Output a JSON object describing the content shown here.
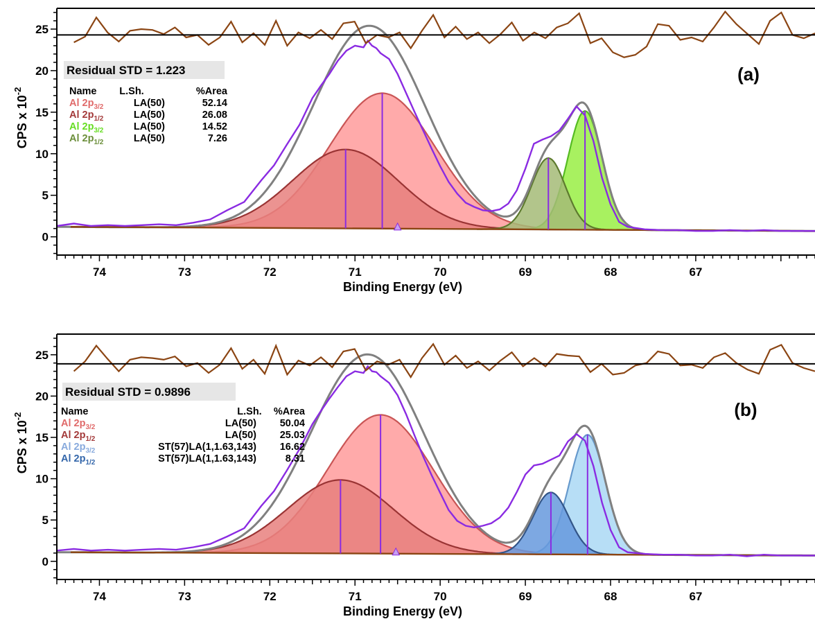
{
  "chart_data": [
    {
      "type": "line",
      "panel_label": "(a)",
      "xlabel": "Binding Energy (eV)",
      "ylabel": "CPS x 10",
      "ylabel_exponent": "-2",
      "xlim": [
        74.5,
        65.6
      ],
      "ylim": [
        -2.2,
        27.5
      ],
      "x_reversed": true,
      "x_ticks": [
        "74",
        "73",
        "72",
        "71",
        "70",
        "69",
        "68",
        "67"
      ],
      "y_ticks": [
        "0",
        "5",
        "10",
        "15",
        "20",
        "25"
      ],
      "residual_std_label": "Residual STD = 1.223",
      "residual_level": 24.3,
      "table": {
        "headers": [
          "Name",
          "L.Sh.",
          "%Area"
        ],
        "rows": [
          {
            "name": "Al 2p",
            "sub": "3/2",
            "lsh": "LA(50)",
            "area": "52.14",
            "color": "#e06a6a"
          },
          {
            "name": "Al 2p",
            "sub": "1/2",
            "lsh": "LA(50)",
            "area": "26.08",
            "color": "#a33a3a"
          },
          {
            "name": "Al 2p",
            "sub": "3/2",
            "lsh": "LA(50)",
            "area": "14.52",
            "color": "#66dd22"
          },
          {
            "name": "Al 2p",
            "sub": "1/2",
            "lsh": "LA(50)",
            "area": "7.26",
            "color": "#6b8e3a"
          }
        ]
      },
      "background": {
        "x": [
          74.5,
          65.6
        ],
        "y": [
          1.2,
          0.7
        ]
      },
      "peaks": [
        {
          "name": "Al 2p3/2",
          "center": 70.68,
          "height": 16.3,
          "sigma": 0.62,
          "fill": "#ff9b9b",
          "stroke": "#c95555"
        },
        {
          "name": "Al 2p1/2",
          "center": 71.11,
          "height": 9.5,
          "sigma": 0.62,
          "fill": "#e8807e",
          "stroke": "#9a3434"
        },
        {
          "name": "Al 2p3/2",
          "center": 68.3,
          "height": 14.3,
          "sigma": 0.2,
          "fill": "#99ee44",
          "stroke": "#55bb22"
        },
        {
          "name": "Al 2p1/2",
          "center": 68.73,
          "height": 8.6,
          "sigma": 0.2,
          "fill": "#a4bb77",
          "stroke": "#5d7a2e"
        }
      ],
      "data": {
        "x": [
          74.5,
          74.3,
          74.1,
          73.9,
          73.7,
          73.5,
          73.3,
          73.1,
          72.9,
          72.7,
          72.5,
          72.3,
          72.1,
          71.95,
          71.8,
          71.65,
          71.5,
          71.4,
          71.3,
          71.2,
          71.1,
          71.0,
          70.9,
          70.85,
          70.8,
          70.75,
          70.7,
          70.6,
          70.5,
          70.4,
          70.3,
          70.2,
          70.1,
          70.0,
          69.9,
          69.8,
          69.7,
          69.6,
          69.5,
          69.4,
          69.3,
          69.2,
          69.1,
          69.0,
          68.9,
          68.8,
          68.7,
          68.6,
          68.5,
          68.4,
          68.3,
          68.2,
          68.1,
          68.0,
          67.9,
          67.8,
          67.6,
          67.4,
          67.2,
          67.0,
          66.8,
          66.6,
          66.4,
          66.2,
          66.0,
          65.8,
          65.6
        ],
        "y": [
          1.3,
          1.6,
          1.3,
          1.4,
          1.3,
          1.4,
          1.5,
          1.4,
          1.7,
          2.1,
          3.2,
          4.2,
          6.8,
          8.6,
          11.1,
          13.5,
          16.7,
          18.2,
          19.6,
          21.2,
          22.4,
          23.0,
          22.8,
          23.6,
          23.0,
          22.7,
          22.1,
          21.4,
          19.6,
          17.3,
          15.0,
          12.8,
          10.6,
          8.5,
          6.6,
          5.2,
          4.1,
          3.6,
          3.2,
          3.1,
          3.3,
          4.0,
          5.6,
          8.2,
          11.2,
          11.7,
          12.1,
          12.8,
          14.2,
          15.7,
          14.6,
          11.5,
          7.1,
          3.9,
          1.8,
          1.2,
          0.9,
          0.8,
          0.8,
          0.7,
          0.7,
          0.8,
          0.7,
          0.8,
          0.7,
          0.7,
          0.7
        ]
      },
      "residuals": [
        23.4,
        24.1,
        26.4,
        24.6,
        23.5,
        24.8,
        25.0,
        24.9,
        24.4,
        25.2,
        24.0,
        24.3,
        23.1,
        24.0,
        25.9,
        23.4,
        24.5,
        23.1,
        26.0,
        23.0,
        24.6,
        23.9,
        24.9,
        23.8,
        25.7,
        25.9,
        23.3,
        24.3,
        24.0,
        24.6,
        22.7,
        24.8,
        26.7,
        24.0,
        25.3,
        23.8,
        24.6,
        23.3,
        24.4,
        25.8,
        23.6,
        24.6,
        23.9,
        25.2,
        25.7,
        26.9,
        23.3,
        23.9,
        22.2,
        21.6,
        21.9,
        22.9,
        25.6,
        25.4,
        23.7,
        24.0,
        23.5,
        25.2,
        27.1,
        25.6,
        24.4,
        23.2,
        26.0,
        27.0,
        24.3,
        23.9,
        24.5
      ]
    },
    {
      "type": "line",
      "panel_label": "(b)",
      "xlabel": "Binding Energy (eV)",
      "ylabel": "CPS x 10",
      "ylabel_exponent": "-2",
      "xlim": [
        74.5,
        65.6
      ],
      "ylim": [
        -2.2,
        27.5
      ],
      "x_reversed": true,
      "x_ticks": [
        "74",
        "73",
        "72",
        "71",
        "70",
        "69",
        "68",
        "67"
      ],
      "y_ticks": [
        "0",
        "5",
        "10",
        "15",
        "20",
        "25"
      ],
      "residual_std_label": "Residual STD = 0.9896",
      "residual_level": 23.9,
      "table": {
        "headers": [
          "Name",
          "L.Sh.",
          "%Area"
        ],
        "rows": [
          {
            "name": "Al 2p",
            "sub": "3/2",
            "lsh": "LA(50)",
            "area": "50.04",
            "color": "#e06a6a"
          },
          {
            "name": "Al 2p",
            "sub": "1/2",
            "lsh": "LA(50)",
            "area": "25.03",
            "color": "#a33a3a"
          },
          {
            "name": "Al 2p",
            "sub": "3/2",
            "lsh": "ST(57)LA(1,1.63,143)",
            "area": "16.62",
            "color": "#88aadd"
          },
          {
            "name": "Al 2p",
            "sub": "1/2",
            "lsh": "ST(57)LA(1,1.63,143)",
            "area": "8.31",
            "color": "#3366aa"
          }
        ]
      },
      "background": {
        "x": [
          74.5,
          65.6
        ],
        "y": [
          1.1,
          0.7
        ]
      },
      "peaks": [
        {
          "name": "Al 2p3/2",
          "center": 70.7,
          "height": 16.8,
          "sigma": 0.62,
          "fill": "#ff9b9b",
          "stroke": "#c95555"
        },
        {
          "name": "Al 2p1/2",
          "center": 71.17,
          "height": 8.9,
          "sigma": 0.62,
          "fill": "#e8807e",
          "stroke": "#9a3434"
        },
        {
          "name": "Al 2p3/2",
          "center": 68.27,
          "height": 14.5,
          "sigma": 0.21,
          "fill": "#aad8f5",
          "stroke": "#6699cc"
        },
        {
          "name": "Al 2p1/2",
          "center": 68.7,
          "height": 7.5,
          "sigma": 0.21,
          "fill": "#6699dd",
          "stroke": "#335588"
        }
      ],
      "data": {
        "x": [
          74.5,
          74.3,
          74.1,
          73.9,
          73.7,
          73.5,
          73.3,
          73.1,
          72.9,
          72.7,
          72.5,
          72.3,
          72.1,
          71.95,
          71.8,
          71.65,
          71.5,
          71.4,
          71.3,
          71.2,
          71.1,
          71.0,
          70.9,
          70.85,
          70.8,
          70.75,
          70.7,
          70.6,
          70.5,
          70.4,
          70.3,
          70.2,
          70.1,
          70.0,
          69.9,
          69.8,
          69.7,
          69.6,
          69.5,
          69.4,
          69.3,
          69.2,
          69.1,
          69.0,
          68.9,
          68.8,
          68.7,
          68.6,
          68.5,
          68.4,
          68.3,
          68.2,
          68.1,
          68.0,
          67.9,
          67.8,
          67.6,
          67.4,
          67.2,
          67.0,
          66.8,
          66.6,
          66.4,
          66.2,
          66.0,
          65.8,
          65.6
        ],
        "y": [
          1.3,
          1.5,
          1.3,
          1.4,
          1.3,
          1.4,
          1.5,
          1.4,
          1.7,
          2.1,
          3.0,
          4.0,
          6.7,
          8.5,
          11.0,
          13.6,
          16.6,
          18.2,
          19.7,
          21.1,
          22.4,
          23.0,
          22.8,
          23.6,
          23.0,
          22.9,
          22.4,
          21.6,
          20.1,
          17.8,
          15.2,
          12.7,
          10.4,
          8.3,
          6.2,
          4.9,
          4.3,
          4.1,
          4.3,
          4.6,
          5.3,
          6.5,
          8.4,
          10.5,
          11.6,
          11.8,
          12.3,
          12.8,
          14.5,
          15.4,
          14.6,
          11.5,
          7.1,
          3.8,
          1.7,
          1.1,
          0.9,
          0.8,
          0.8,
          0.7,
          0.7,
          0.8,
          0.6,
          0.8,
          0.7,
          0.7,
          0.7
        ]
      },
      "residuals": [
        23.0,
        24.2,
        26.1,
        24.5,
        23.0,
        24.4,
        24.7,
        24.6,
        24.4,
        24.8,
        23.6,
        24.0,
        22.8,
        23.8,
        25.8,
        23.3,
        24.4,
        22.7,
        26.1,
        22.6,
        24.3,
        23.7,
        24.7,
        23.5,
        25.4,
        25.7,
        23.1,
        24.2,
        23.8,
        24.4,
        22.3,
        24.6,
        26.3,
        23.8,
        24.9,
        23.4,
        24.2,
        23.1,
        24.3,
        25.3,
        23.6,
        24.6,
        23.6,
        25.1,
        24.9,
        24.8,
        22.9,
        23.9,
        22.6,
        22.8,
        23.7,
        24.0,
        25.4,
        25.1,
        23.7,
        23.8,
        23.4,
        24.7,
        25.2,
        24.0,
        23.2,
        22.7,
        25.6,
        26.2,
        24.0,
        23.4,
        23.0
      ]
    }
  ]
}
